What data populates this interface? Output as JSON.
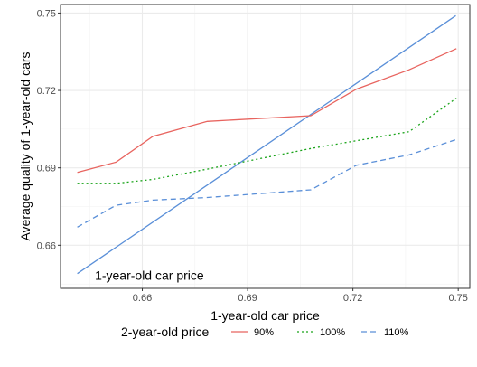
{
  "chart_data": {
    "type": "line",
    "xlabel": "1-year-old car price",
    "ylabel": "Average quality of 1-year-old cars",
    "xlim": [
      0.6367,
      0.7533
    ],
    "ylim": [
      0.6433,
      0.7533
    ],
    "x_ticks": [
      0.66,
      0.69,
      0.72,
      0.75
    ],
    "x_tick_labels": [
      "0.66",
      "0.69",
      "0.72",
      "0.75"
    ],
    "y_ticks": [
      0.66,
      0.69,
      0.72,
      0.75
    ],
    "y_tick_labels": [
      "0.66",
      "0.69",
      "0.72",
      "0.75"
    ],
    "grid": true,
    "annotation": {
      "text": "1-year-old car price",
      "x": 0.6465,
      "y": 0.6484
    },
    "reference_line": {
      "color": "#5a8fd8",
      "points": [
        [
          0.6415,
          0.649
        ],
        [
          0.7493,
          0.749
        ]
      ]
    },
    "legend": {
      "title": "2-year-old price",
      "position": "bottom"
    },
    "series": [
      {
        "name": "90%",
        "color": "#e8645f",
        "dash": "solid",
        "points": [
          [
            0.6415,
            0.6882
          ],
          [
            0.6525,
            0.6922
          ],
          [
            0.663,
            0.7022
          ],
          [
            0.6785,
            0.708
          ],
          [
            0.708,
            0.7102
          ],
          [
            0.721,
            0.7205
          ],
          [
            0.736,
            0.728
          ],
          [
            0.7495,
            0.7362
          ]
        ]
      },
      {
        "name": "100%",
        "color": "#1aa41a",
        "dash": "dotted",
        "points": [
          [
            0.6415,
            0.684
          ],
          [
            0.6525,
            0.684
          ],
          [
            0.663,
            0.6855
          ],
          [
            0.6785,
            0.6895
          ],
          [
            0.708,
            0.6975
          ],
          [
            0.721,
            0.7005
          ],
          [
            0.736,
            0.704
          ],
          [
            0.7495,
            0.717
          ]
        ]
      },
      {
        "name": "110%",
        "color": "#5a8fd8",
        "dash": "dashed",
        "points": [
          [
            0.6415,
            0.667
          ],
          [
            0.6525,
            0.6755
          ],
          [
            0.663,
            0.6775
          ],
          [
            0.6785,
            0.6785
          ],
          [
            0.708,
            0.6815
          ],
          [
            0.721,
            0.691
          ],
          [
            0.736,
            0.695
          ],
          [
            0.7495,
            0.701
          ]
        ]
      }
    ]
  }
}
